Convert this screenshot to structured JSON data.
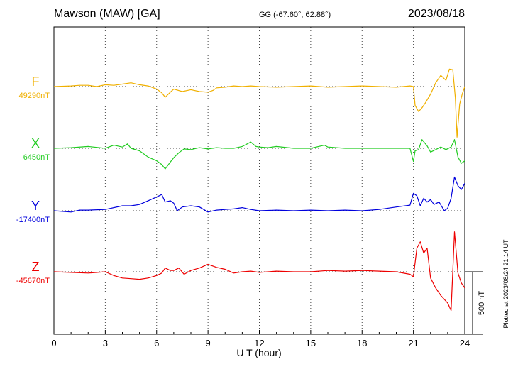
{
  "header": {
    "station": "Mawson (MAW)  [GA]",
    "coords": "GG (-67.60°,  62.88°)",
    "date": "2023/08/18"
  },
  "footer": {
    "plotted": "Plotted at 2023/08/24 21:14 UT",
    "scale_label": "500 nT"
  },
  "chart_data": {
    "type": "line",
    "xlabel": "U T (hour)",
    "xlim": [
      0,
      24
    ],
    "xticks": [
      0,
      3,
      6,
      9,
      12,
      15,
      18,
      21,
      24
    ],
    "grid": true,
    "scale_bar_nT": 500,
    "nT_per_major_division": 500,
    "series": [
      {
        "name": "F",
        "baseline_label": "49290nT",
        "baseline": 49290,
        "color": "#f0b000",
        "points": [
          [
            0,
            49290
          ],
          [
            1,
            49295
          ],
          [
            1.5,
            49300
          ],
          [
            2,
            49300
          ],
          [
            2.5,
            49290
          ],
          [
            3,
            49305
          ],
          [
            3.5,
            49300
          ],
          [
            4,
            49310
          ],
          [
            4.5,
            49320
          ],
          [
            5,
            49305
          ],
          [
            5.5,
            49295
          ],
          [
            6,
            49270
          ],
          [
            6.3,
            49240
          ],
          [
            6.5,
            49205
          ],
          [
            6.8,
            49245
          ],
          [
            7,
            49270
          ],
          [
            7.5,
            49250
          ],
          [
            8,
            49265
          ],
          [
            8.5,
            49250
          ],
          [
            9,
            49245
          ],
          [
            9.3,
            49260
          ],
          [
            9.5,
            49280
          ],
          [
            10,
            49285
          ],
          [
            10.5,
            49295
          ],
          [
            11,
            49290
          ],
          [
            11.5,
            49295
          ],
          [
            12,
            49290
          ],
          [
            13,
            49285
          ],
          [
            14,
            49290
          ],
          [
            15,
            49295
          ],
          [
            16,
            49285
          ],
          [
            17,
            49290
          ],
          [
            18,
            49295
          ],
          [
            19,
            49290
          ],
          [
            20,
            49285
          ],
          [
            20.8,
            49295
          ],
          [
            21,
            49290
          ],
          [
            21.1,
            49140
          ],
          [
            21.3,
            49090
          ],
          [
            21.5,
            49120
          ],
          [
            21.7,
            49160
          ],
          [
            22,
            49230
          ],
          [
            22.3,
            49320
          ],
          [
            22.6,
            49380
          ],
          [
            22.9,
            49340
          ],
          [
            23.1,
            49430
          ],
          [
            23.3,
            49425
          ],
          [
            23.45,
            49200
          ],
          [
            23.55,
            48885
          ],
          [
            23.7,
            49150
          ],
          [
            23.85,
            49230
          ],
          [
            24,
            49290
          ]
        ]
      },
      {
        "name": "X",
        "baseline_label": "6450nT",
        "baseline": 6450,
        "color": "#22cc22",
        "points": [
          [
            0,
            6450
          ],
          [
            1,
            6455
          ],
          [
            2,
            6465
          ],
          [
            3,
            6450
          ],
          [
            3.5,
            6475
          ],
          [
            4,
            6460
          ],
          [
            4.3,
            6485
          ],
          [
            4.5,
            6450
          ],
          [
            5,
            6430
          ],
          [
            5.5,
            6380
          ],
          [
            6,
            6350
          ],
          [
            6.3,
            6320
          ],
          [
            6.5,
            6285
          ],
          [
            6.8,
            6340
          ],
          [
            7,
            6375
          ],
          [
            7.3,
            6415
          ],
          [
            7.6,
            6445
          ],
          [
            8,
            6440
          ],
          [
            8.5,
            6455
          ],
          [
            9,
            6445
          ],
          [
            9.5,
            6455
          ],
          [
            10,
            6450
          ],
          [
            10.5,
            6450
          ],
          [
            11,
            6465
          ],
          [
            11.5,
            6500
          ],
          [
            11.8,
            6465
          ],
          [
            12,
            6460
          ],
          [
            12.5,
            6455
          ],
          [
            13,
            6465
          ],
          [
            14,
            6450
          ],
          [
            15,
            6450
          ],
          [
            15.8,
            6475
          ],
          [
            16,
            6460
          ],
          [
            17,
            6450
          ],
          [
            18,
            6450
          ],
          [
            19,
            6450
          ],
          [
            20,
            6450
          ],
          [
            20.8,
            6450
          ],
          [
            21,
            6345
          ],
          [
            21.1,
            6430
          ],
          [
            21.3,
            6440
          ],
          [
            21.5,
            6520
          ],
          [
            21.8,
            6470
          ],
          [
            22,
            6420
          ],
          [
            22.3,
            6440
          ],
          [
            22.6,
            6460
          ],
          [
            22.9,
            6440
          ],
          [
            23.2,
            6460
          ],
          [
            23.4,
            6520
          ],
          [
            23.6,
            6380
          ],
          [
            23.8,
            6330
          ],
          [
            24,
            6350
          ]
        ]
      },
      {
        "name": "Y",
        "baseline_label": "-17400nT",
        "baseline": -17400,
        "color": "#0000dd",
        "points": [
          [
            0,
            -17400
          ],
          [
            0.5,
            -17405
          ],
          [
            1,
            -17410
          ],
          [
            1.5,
            -17395
          ],
          [
            2,
            -17395
          ],
          [
            3,
            -17390
          ],
          [
            4,
            -17360
          ],
          [
            4.5,
            -17360
          ],
          [
            5,
            -17350
          ],
          [
            5.5,
            -17320
          ],
          [
            6,
            -17290
          ],
          [
            6.3,
            -17270
          ],
          [
            6.5,
            -17330
          ],
          [
            6.8,
            -17320
          ],
          [
            7,
            -17340
          ],
          [
            7.2,
            -17400
          ],
          [
            7.5,
            -17370
          ],
          [
            8,
            -17360
          ],
          [
            8.5,
            -17370
          ],
          [
            9,
            -17410
          ],
          [
            9.5,
            -17395
          ],
          [
            10,
            -17390
          ],
          [
            10.5,
            -17385
          ],
          [
            11,
            -17375
          ],
          [
            11.5,
            -17390
          ],
          [
            12,
            -17400
          ],
          [
            13,
            -17395
          ],
          [
            14,
            -17400
          ],
          [
            15,
            -17395
          ],
          [
            16,
            -17400
          ],
          [
            17,
            -17395
          ],
          [
            18,
            -17400
          ],
          [
            19,
            -17390
          ],
          [
            20,
            -17370
          ],
          [
            20.8,
            -17355
          ],
          [
            21,
            -17260
          ],
          [
            21.2,
            -17280
          ],
          [
            21.4,
            -17360
          ],
          [
            21.6,
            -17300
          ],
          [
            21.8,
            -17330
          ],
          [
            22,
            -17310
          ],
          [
            22.2,
            -17350
          ],
          [
            22.5,
            -17330
          ],
          [
            22.8,
            -17400
          ],
          [
            23,
            -17380
          ],
          [
            23.2,
            -17300
          ],
          [
            23.4,
            -17130
          ],
          [
            23.6,
            -17200
          ],
          [
            23.8,
            -17230
          ],
          [
            24,
            -17180
          ]
        ]
      },
      {
        "name": "Z",
        "baseline_label": "-45670nT",
        "baseline": -45670,
        "color": "#ee0000",
        "points": [
          [
            0,
            -45670
          ],
          [
            1,
            -45675
          ],
          [
            2,
            -45680
          ],
          [
            3,
            -45670
          ],
          [
            3.5,
            -45700
          ],
          [
            4,
            -45720
          ],
          [
            4.5,
            -45725
          ],
          [
            5,
            -45730
          ],
          [
            5.5,
            -45720
          ],
          [
            6,
            -45700
          ],
          [
            6.3,
            -45680
          ],
          [
            6.5,
            -45640
          ],
          [
            6.8,
            -45660
          ],
          [
            7,
            -45660
          ],
          [
            7.3,
            -45640
          ],
          [
            7.6,
            -45690
          ],
          [
            8,
            -45660
          ],
          [
            8.5,
            -45640
          ],
          [
            9,
            -45610
          ],
          [
            9.5,
            -45635
          ],
          [
            10,
            -45650
          ],
          [
            10.5,
            -45680
          ],
          [
            11,
            -45670
          ],
          [
            11.5,
            -45665
          ],
          [
            12,
            -45675
          ],
          [
            13,
            -45665
          ],
          [
            14,
            -45670
          ],
          [
            15,
            -45670
          ],
          [
            16,
            -45660
          ],
          [
            17,
            -45665
          ],
          [
            18,
            -45660
          ],
          [
            19,
            -45665
          ],
          [
            20,
            -45670
          ],
          [
            20.8,
            -45690
          ],
          [
            21,
            -45710
          ],
          [
            21.2,
            -45480
          ],
          [
            21.4,
            -45430
          ],
          [
            21.6,
            -45520
          ],
          [
            21.8,
            -45480
          ],
          [
            22,
            -45720
          ],
          [
            22.3,
            -45800
          ],
          [
            22.6,
            -45860
          ],
          [
            23,
            -45920
          ],
          [
            23.2,
            -45980
          ],
          [
            23.4,
            -45350
          ],
          [
            23.6,
            -45680
          ],
          [
            23.8,
            -45760
          ],
          [
            24,
            -45800
          ]
        ]
      }
    ]
  }
}
